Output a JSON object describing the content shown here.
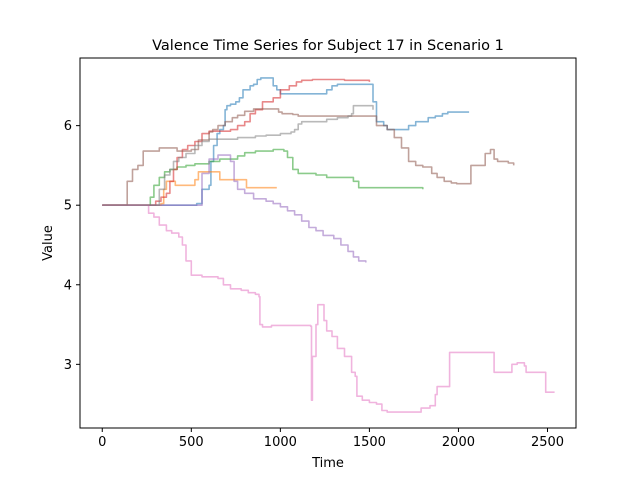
{
  "chart_data": {
    "type": "line",
    "title": "Valence Time Series for Subject 17 in Scenario 1",
    "xlabel": "Time",
    "ylabel": "Value",
    "xlim": [
      -125,
      2660
    ],
    "ylim": [
      2.2,
      6.85
    ],
    "xticks": [
      0,
      500,
      1000,
      1500,
      2000,
      2500
    ],
    "yticks": [
      3,
      4,
      5,
      6
    ],
    "grid": false,
    "legend": "none",
    "series": [
      {
        "color": "#1f77b4",
        "points": [
          [
            0,
            5
          ],
          [
            370,
            5
          ],
          [
            510,
            5
          ],
          [
            530,
            5.02
          ],
          [
            560,
            5.2
          ],
          [
            575,
            5.2
          ],
          [
            600,
            5.25
          ],
          [
            610,
            5.55
          ],
          [
            625,
            5.75
          ],
          [
            645,
            5.9
          ],
          [
            660,
            5.95
          ],
          [
            680,
            6.0
          ],
          [
            690,
            6.2
          ],
          [
            700,
            6.25
          ],
          [
            720,
            6.27
          ],
          [
            750,
            6.3
          ],
          [
            770,
            6.35
          ],
          [
            790,
            6.45
          ],
          [
            810,
            6.45
          ],
          [
            830,
            6.5
          ],
          [
            850,
            6.52
          ],
          [
            870,
            6.58
          ],
          [
            890,
            6.6
          ],
          [
            940,
            6.6
          ],
          [
            960,
            6.5
          ],
          [
            980,
            6.45
          ],
          [
            1000,
            6.4
          ],
          [
            1250,
            6.4
          ],
          [
            1260,
            6.45
          ],
          [
            1290,
            6.5
          ],
          [
            1320,
            6.52
          ],
          [
            1500,
            6.52
          ],
          [
            1520,
            6.3
          ],
          [
            1540,
            6.05
          ],
          [
            1580,
            6.0
          ],
          [
            1600,
            5.95
          ],
          [
            1700,
            5.95
          ],
          [
            1720,
            6.0
          ],
          [
            1760,
            6.05
          ],
          [
            1800,
            6.05
          ],
          [
            1830,
            6.1
          ],
          [
            1870,
            6.12
          ],
          [
            1910,
            6.15
          ],
          [
            1940,
            6.17
          ],
          [
            2060,
            6.17
          ]
        ]
      },
      {
        "color": "#ff7f0e",
        "points": [
          [
            0,
            5
          ],
          [
            300,
            5
          ],
          [
            330,
            5.02
          ],
          [
            345,
            5.2
          ],
          [
            360,
            5.3
          ],
          [
            400,
            5.3
          ],
          [
            410,
            5.25
          ],
          [
            500,
            5.25
          ],
          [
            520,
            5.32
          ],
          [
            540,
            5.42
          ],
          [
            650,
            5.42
          ],
          [
            660,
            5.32
          ],
          [
            800,
            5.32
          ],
          [
            810,
            5.22
          ],
          [
            980,
            5.22
          ]
        ]
      },
      {
        "color": "#2ca02c",
        "points": [
          [
            0,
            5
          ],
          [
            250,
            5
          ],
          [
            270,
            5.1
          ],
          [
            290,
            5.25
          ],
          [
            320,
            5.35
          ],
          [
            350,
            5.42
          ],
          [
            380,
            5.45
          ],
          [
            420,
            5.48
          ],
          [
            470,
            5.5
          ],
          [
            520,
            5.52
          ],
          [
            600,
            5.55
          ],
          [
            660,
            5.58
          ],
          [
            760,
            5.62
          ],
          [
            800,
            5.66
          ],
          [
            860,
            5.68
          ],
          [
            960,
            5.7
          ],
          [
            1000,
            5.7
          ],
          [
            1020,
            5.68
          ],
          [
            1040,
            5.6
          ],
          [
            1070,
            5.45
          ],
          [
            1100,
            5.4
          ],
          [
            1200,
            5.38
          ],
          [
            1260,
            5.35
          ],
          [
            1380,
            5.35
          ],
          [
            1410,
            5.3
          ],
          [
            1440,
            5.22
          ],
          [
            1800,
            5.2
          ]
        ]
      },
      {
        "color": "#d62728",
        "points": [
          [
            0,
            5
          ],
          [
            280,
            5
          ],
          [
            300,
            5.05
          ],
          [
            330,
            5.1
          ],
          [
            360,
            5.15
          ],
          [
            380,
            5.3
          ],
          [
            400,
            5.45
          ],
          [
            420,
            5.6
          ],
          [
            450,
            5.7
          ],
          [
            480,
            5.75
          ],
          [
            520,
            5.8
          ],
          [
            560,
            5.9
          ],
          [
            600,
            5.93
          ],
          [
            700,
            5.93
          ],
          [
            720,
            5.95
          ],
          [
            760,
            6.0
          ],
          [
            800,
            6.05
          ],
          [
            830,
            6.15
          ],
          [
            860,
            6.2
          ],
          [
            900,
            6.3
          ],
          [
            960,
            6.35
          ],
          [
            1000,
            6.45
          ],
          [
            1050,
            6.5
          ],
          [
            1090,
            6.55
          ],
          [
            1120,
            6.57
          ],
          [
            1180,
            6.58
          ],
          [
            1330,
            6.58
          ],
          [
            1360,
            6.57
          ],
          [
            1500,
            6.55
          ]
        ]
      },
      {
        "color": "#9467bd",
        "points": [
          [
            0,
            5
          ],
          [
            520,
            5
          ],
          [
            560,
            5.4
          ],
          [
            600,
            5.58
          ],
          [
            650,
            5.63
          ],
          [
            700,
            5.63
          ],
          [
            720,
            5.55
          ],
          [
            740,
            5.3
          ],
          [
            760,
            5.2
          ],
          [
            800,
            5.15
          ],
          [
            850,
            5.08
          ],
          [
            920,
            5.05
          ],
          [
            960,
            5.02
          ],
          [
            1000,
            4.98
          ],
          [
            1040,
            4.93
          ],
          [
            1080,
            4.88
          ],
          [
            1120,
            4.8
          ],
          [
            1160,
            4.72
          ],
          [
            1200,
            4.68
          ],
          [
            1240,
            4.62
          ],
          [
            1300,
            4.58
          ],
          [
            1340,
            4.5
          ],
          [
            1380,
            4.42
          ],
          [
            1410,
            4.35
          ],
          [
            1440,
            4.3
          ],
          [
            1480,
            4.28
          ]
        ]
      },
      {
        "color": "#8c564b",
        "points": [
          [
            0,
            5
          ],
          [
            120,
            5
          ],
          [
            140,
            5.3
          ],
          [
            170,
            5.45
          ],
          [
            200,
            5.5
          ],
          [
            230,
            5.68
          ],
          [
            300,
            5.68
          ],
          [
            320,
            5.72
          ],
          [
            400,
            5.72
          ],
          [
            420,
            5.68
          ],
          [
            500,
            5.7
          ],
          [
            540,
            5.82
          ],
          [
            600,
            5.92
          ],
          [
            620,
            5.95
          ],
          [
            650,
            6.0
          ],
          [
            690,
            6.05
          ],
          [
            730,
            6.1
          ],
          [
            760,
            6.13
          ],
          [
            800,
            6.18
          ],
          [
            850,
            6.21
          ],
          [
            960,
            6.21
          ],
          [
            990,
            6.17
          ],
          [
            1010,
            6.15
          ],
          [
            1070,
            6.14
          ],
          [
            1100,
            6.12
          ],
          [
            1300,
            6.12
          ],
          [
            1500,
            6.12
          ],
          [
            1540,
            6.0
          ],
          [
            1600,
            5.95
          ],
          [
            1640,
            5.85
          ],
          [
            1680,
            5.72
          ],
          [
            1720,
            5.55
          ],
          [
            1760,
            5.5
          ],
          [
            1800,
            5.48
          ],
          [
            1850,
            5.4
          ],
          [
            1880,
            5.35
          ],
          [
            1920,
            5.3
          ],
          [
            1960,
            5.28
          ],
          [
            1990,
            5.27
          ],
          [
            2040,
            5.27
          ],
          [
            2070,
            5.5
          ],
          [
            2100,
            5.5
          ],
          [
            2150,
            5.65
          ],
          [
            2180,
            5.7
          ],
          [
            2200,
            5.58
          ],
          [
            2220,
            5.55
          ],
          [
            2280,
            5.53
          ],
          [
            2310,
            5.5
          ]
        ]
      },
      {
        "color": "#e377c2",
        "points": [
          [
            0,
            5
          ],
          [
            240,
            5
          ],
          [
            260,
            4.9
          ],
          [
            290,
            4.85
          ],
          [
            320,
            4.75
          ],
          [
            360,
            4.68
          ],
          [
            390,
            4.65
          ],
          [
            430,
            4.6
          ],
          [
            450,
            4.5
          ],
          [
            470,
            4.3
          ],
          [
            500,
            4.12
          ],
          [
            560,
            4.1
          ],
          [
            650,
            4.08
          ],
          [
            680,
            4.0
          ],
          [
            720,
            3.95
          ],
          [
            780,
            3.93
          ],
          [
            820,
            3.9
          ],
          [
            860,
            3.88
          ],
          [
            880,
            3.85
          ],
          [
            885,
            3.5
          ],
          [
            900,
            3.47
          ],
          [
            950,
            3.49
          ],
          [
            1060,
            3.49
          ],
          [
            1170,
            3.48
          ],
          [
            1175,
            2.55
          ],
          [
            1180,
            3.1
          ],
          [
            1200,
            3.5
          ],
          [
            1210,
            3.75
          ],
          [
            1230,
            3.75
          ],
          [
            1245,
            3.55
          ],
          [
            1260,
            3.42
          ],
          [
            1290,
            3.35
          ],
          [
            1320,
            3.2
          ],
          [
            1360,
            3.1
          ],
          [
            1400,
            2.9
          ],
          [
            1420,
            2.85
          ],
          [
            1430,
            2.6
          ],
          [
            1460,
            2.55
          ],
          [
            1500,
            2.52
          ],
          [
            1540,
            2.5
          ],
          [
            1570,
            2.42
          ],
          [
            1600,
            2.4
          ],
          [
            1780,
            2.4
          ],
          [
            1790,
            2.45
          ],
          [
            1840,
            2.48
          ],
          [
            1870,
            2.62
          ],
          [
            1880,
            2.72
          ],
          [
            1940,
            2.72
          ],
          [
            1950,
            3.15
          ],
          [
            2170,
            3.15
          ],
          [
            2200,
            2.9
          ],
          [
            2230,
            2.9
          ],
          [
            2290,
            2.9
          ],
          [
            2300,
            3.0
          ],
          [
            2330,
            3.02
          ],
          [
            2370,
            2.98
          ],
          [
            2380,
            2.9
          ],
          [
            2480,
            2.9
          ],
          [
            2490,
            2.65
          ],
          [
            2540,
            2.65
          ]
        ]
      },
      {
        "color": "#7f7f7f",
        "points": [
          [
            0,
            5
          ],
          [
            300,
            5
          ],
          [
            320,
            5.2
          ],
          [
            350,
            5.38
          ],
          [
            380,
            5.45
          ],
          [
            400,
            5.55
          ],
          [
            430,
            5.6
          ],
          [
            470,
            5.65
          ],
          [
            520,
            5.75
          ],
          [
            560,
            5.8
          ],
          [
            600,
            5.83
          ],
          [
            700,
            5.83
          ],
          [
            760,
            5.85
          ],
          [
            860,
            5.87
          ],
          [
            920,
            5.88
          ],
          [
            1000,
            5.9
          ],
          [
            1060,
            5.92
          ],
          [
            1080,
            5.95
          ],
          [
            1100,
            6.02
          ],
          [
            1120,
            6.05
          ],
          [
            1200,
            6.05
          ],
          [
            1260,
            6.08
          ],
          [
            1320,
            6.1
          ],
          [
            1380,
            6.12
          ],
          [
            1400,
            6.15
          ],
          [
            1410,
            6.25
          ],
          [
            1480,
            6.25
          ],
          [
            1520,
            6.2
          ]
        ]
      }
    ]
  }
}
